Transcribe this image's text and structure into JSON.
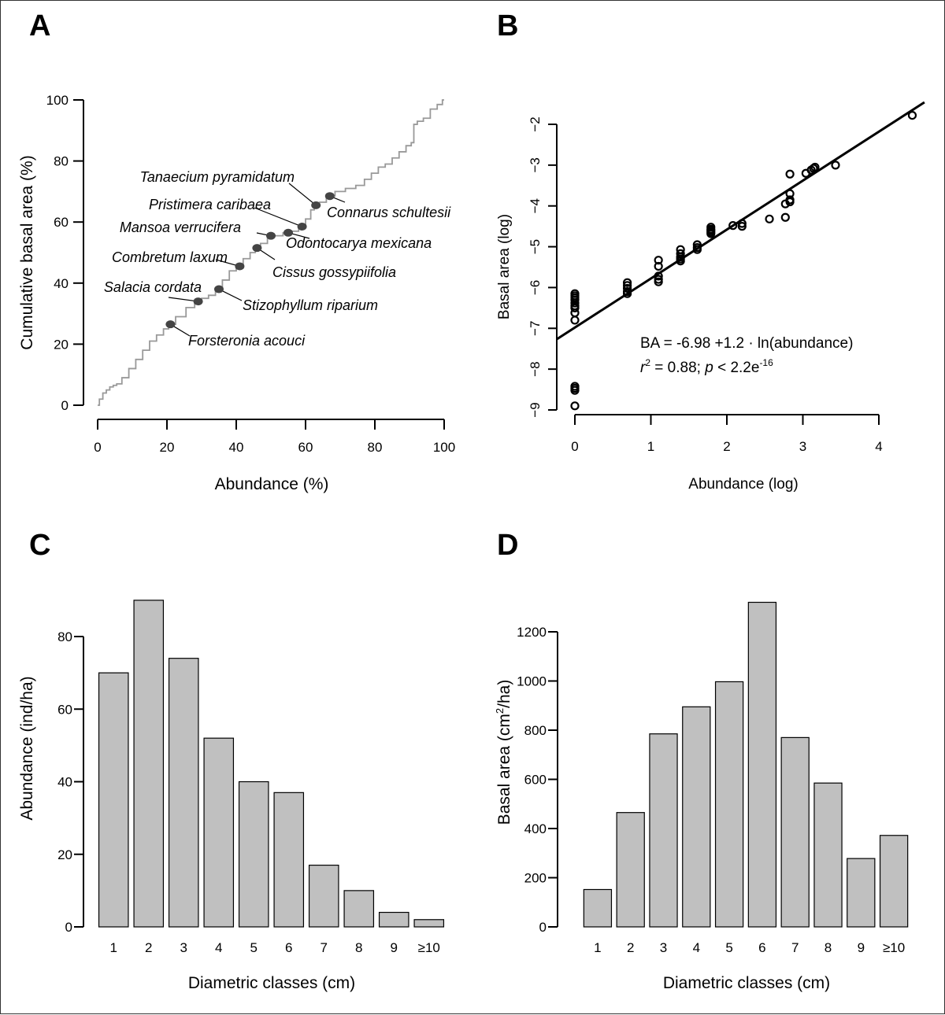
{
  "chart_data": [
    {
      "panel": "A",
      "type": "line",
      "title": "",
      "xlabel": "Abundance (%)",
      "ylabel": "Cumulative basal area (%)",
      "xlim": [
        0,
        100
      ],
      "ylim": [
        0,
        100
      ],
      "xticks": [
        0,
        20,
        40,
        60,
        80,
        100
      ],
      "yticks": [
        0,
        20,
        40,
        60,
        80,
        100
      ],
      "grid": false,
      "line_color": "#999999",
      "marker_color": "#444444",
      "series": [
        {
          "name": "cumulative",
          "x": [
            0,
            1,
            2,
            3,
            4,
            5,
            6,
            8,
            10,
            12,
            14,
            16,
            18,
            20,
            21,
            24,
            27,
            29,
            31,
            33,
            35,
            37,
            39,
            41,
            43,
            45,
            46,
            48,
            50,
            52,
            55,
            57,
            59,
            61,
            62,
            63,
            65,
            67,
            70,
            73,
            76,
            78,
            80,
            82,
            84,
            86,
            88,
            90,
            91,
            91.5,
            93,
            95,
            97,
            99,
            100
          ],
          "y": [
            0,
            2,
            4,
            5,
            6,
            6.5,
            7,
            9,
            12,
            15,
            18,
            21,
            23,
            25,
            26.5,
            29,
            32,
            34,
            35,
            36,
            38,
            41,
            44,
            45,
            48,
            50,
            51.5,
            53,
            55,
            55.5,
            56.5,
            57,
            58.5,
            61,
            64,
            65.5,
            66.5,
            68.5,
            70,
            71,
            72,
            74,
            76,
            78,
            79,
            81,
            83,
            85,
            86,
            92,
            93,
            94,
            97,
            98.5,
            100
          ]
        }
      ],
      "annotations": [
        {
          "label": "Forsteronia acouci",
          "x": 21,
          "y": 26.5
        },
        {
          "label": "Salacia cordata",
          "x": 29,
          "y": 34
        },
        {
          "label": "Stizophyllum riparium",
          "x": 35,
          "y": 38
        },
        {
          "label": "Combretum laxum",
          "x": 41,
          "y": 45.5
        },
        {
          "label": "Cissus gossypiifolia",
          "x": 46,
          "y": 51.5
        },
        {
          "label": "Mansoa verrucifera",
          "x": 50,
          "y": 55.5
        },
        {
          "label": "Odontocarya mexicana",
          "x": 55,
          "y": 56.5
        },
        {
          "label": "Pristimera caribaea",
          "x": 59,
          "y": 58.5
        },
        {
          "label": "Tanaecium pyramidatum",
          "x": 63,
          "y": 65.5
        },
        {
          "label": "Connarus schultesii",
          "x": 67,
          "y": 68.5
        }
      ]
    },
    {
      "panel": "B",
      "type": "scatter",
      "title": "",
      "xlabel": "Abundance (log)",
      "ylabel": "Basal area (log)",
      "xlim": [
        0,
        4
      ],
      "ylim": [
        -9,
        -2
      ],
      "xticks": [
        0,
        1,
        2,
        3,
        4
      ],
      "yticks": [
        -9,
        -8,
        -7,
        -6,
        -5,
        -4,
        -3,
        -2
      ],
      "grid": false,
      "points": {
        "x": [
          0,
          0,
          0,
          0,
          0,
          0,
          0,
          0,
          0,
          0,
          0,
          0,
          0,
          0.69,
          0.69,
          0.69,
          0.69,
          0.69,
          1.1,
          1.1,
          1.1,
          1.1,
          1.1,
          1.39,
          1.39,
          1.39,
          1.39,
          1.39,
          1.61,
          1.61,
          1.61,
          1.79,
          1.79,
          1.79,
          1.79,
          1.79,
          2.08,
          2.2,
          2.2,
          2.56,
          2.77,
          2.77,
          2.83,
          2.83,
          2.83,
          2.83,
          3.04,
          3.11,
          3.14,
          3.16,
          3.43,
          4.44
        ],
        "y": [
          -6.15,
          -6.2,
          -6.25,
          -6.3,
          -6.38,
          -6.45,
          -6.62,
          -6.8,
          -8.42,
          -8.47,
          -8.52,
          -8.9,
          -6.5,
          -5.88,
          -5.95,
          -6.02,
          -6.1,
          -6.15,
          -5.33,
          -5.48,
          -5.72,
          -5.8,
          -5.86,
          -5.07,
          -5.17,
          -5.25,
          -5.3,
          -5.35,
          -4.95,
          -5.02,
          -5.07,
          -4.52,
          -4.57,
          -4.6,
          -4.64,
          -4.68,
          -4.48,
          -4.43,
          -4.5,
          -4.32,
          -4.28,
          -3.95,
          -3.22,
          -3.7,
          -3.85,
          -3.9,
          -3.2,
          -3.12,
          -3.08,
          -3.05,
          -3.0,
          -1.78
        ]
      },
      "fit": {
        "intercept": -6.98,
        "slope": 1.2,
        "x_range": [
          -0.1,
          4.6
        ]
      },
      "annotations": [
        {
          "label": "BA = -6.98 +1.2 · ln(abundance)"
        },
        {
          "label_parts": [
            "r",
            "2",
            " = 0.88; ",
            "p",
            " < 2.2e",
            "-16"
          ]
        }
      ]
    },
    {
      "panel": "C",
      "type": "bar",
      "title": "",
      "xlabel": "Diametric classes (cm)",
      "ylabel": "Abundance (ind/ha)",
      "categories": [
        "1",
        "2",
        "3",
        "4",
        "5",
        "6",
        "7",
        "8",
        "9",
        "≥10"
      ],
      "values": [
        70,
        90,
        74,
        52,
        40,
        37,
        17,
        10,
        4,
        2
      ],
      "ylim": [
        0,
        90
      ],
      "yticks": [
        0,
        20,
        40,
        60,
        80
      ],
      "bar_color": "#c0c0c0",
      "grid": false
    },
    {
      "panel": "D",
      "type": "bar",
      "title": "",
      "xlabel": "Diametric classes (cm)",
      "ylabel_parts": [
        "Basal area (cm",
        "2",
        "/ha)"
      ],
      "categories": [
        "1",
        "2",
        "3",
        "4",
        "5",
        "6",
        "7",
        "8",
        "9",
        "≥10"
      ],
      "values": [
        152,
        465,
        785,
        895,
        997,
        1320,
        770,
        585,
        278,
        372
      ],
      "ylim": [
        0,
        1320
      ],
      "yticks": [
        0,
        200,
        400,
        600,
        800,
        1000,
        1200
      ],
      "bar_color": "#c0c0c0",
      "grid": false
    }
  ],
  "panel_labels": [
    "A",
    "B",
    "C",
    "D"
  ]
}
